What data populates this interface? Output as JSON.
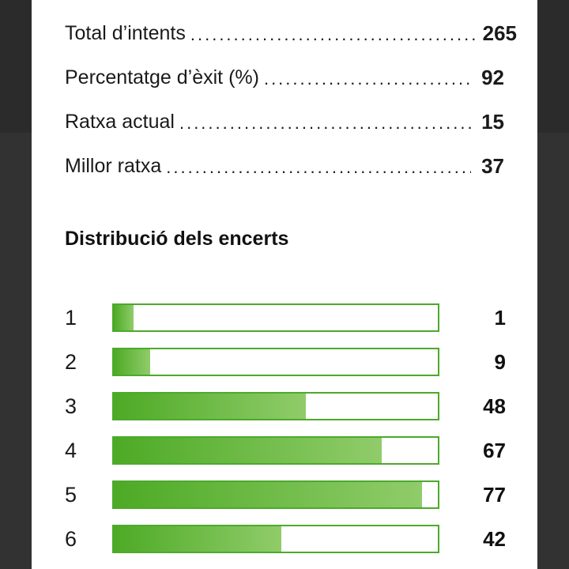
{
  "stats": [
    {
      "label": "Total d’intents",
      "value": "265"
    },
    {
      "label": "Percentatge d’èxit (%)",
      "value": "92"
    },
    {
      "label": "Ratxa actual",
      "value": "15"
    },
    {
      "label": "Millor ratxa",
      "value": "37"
    }
  ],
  "distribution": {
    "title": "Distribució dels encerts",
    "max": 77,
    "rows": [
      {
        "guess": "1",
        "count": 1
      },
      {
        "guess": "2",
        "count": 9
      },
      {
        "guess": "3",
        "count": 48
      },
      {
        "guess": "4",
        "count": 67
      },
      {
        "guess": "5",
        "count": 77
      },
      {
        "guess": "6",
        "count": 42
      }
    ]
  },
  "colors": {
    "bar_start": "#4daa25",
    "bar_end": "#90cc6a",
    "bar_border": "#4caa2b"
  }
}
